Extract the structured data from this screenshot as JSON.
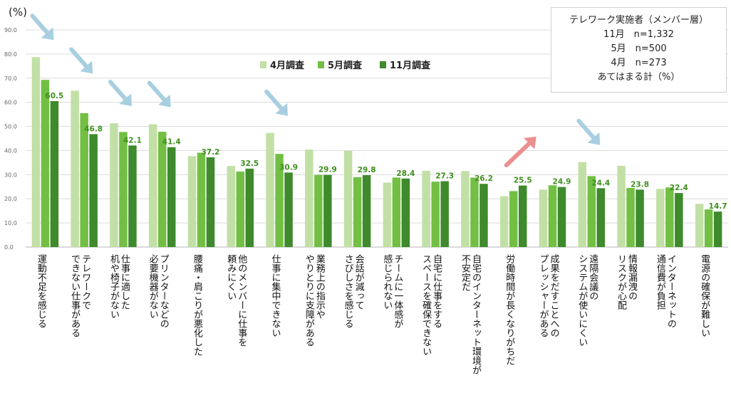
{
  "chart_data": {
    "type": "bar",
    "unit_label": "(%)",
    "ylim": [
      0,
      90
    ],
    "yticks": [
      "0.0",
      "10.0",
      "20.0",
      "30.0",
      "40.0",
      "50.0",
      "60.0",
      "70.0",
      "80.0",
      "90.0"
    ],
    "grid": true,
    "legend_position": "top-center",
    "categories": [
      "運動不足を感じる",
      "テレワークで\nできない仕事がある",
      "仕事に適した\n机や椅子がない",
      "プリンターなどの\n必要機器がない",
      "腰痛・肩こりが悪化した",
      "他のメンバーに仕事を\n頼みにくい",
      "仕事に集中できない",
      "業務上の指示や\nやりとりに支障がある",
      "会話が減って\nさびしさを感じる",
      "チームに一体感が\n感じられない",
      "自宅に仕事をする\nスペースを確保できない",
      "自宅のインターネット環境が\n不安定だ",
      "労働時間が長くなりがちだ",
      "成果をだすことへの\nプレッシャーがある",
      "遠隔会議の\nシステムが使いにくい",
      "情報漏洩の\nリスクが心配",
      "インターネットの\n通信費が負担",
      "電源の確保が難しい"
    ],
    "series": [
      {
        "name": "4月調査",
        "color": "#c2e0a6",
        "values": [
          78.7,
          64.8,
          51.3,
          50.9,
          37.7,
          33.6,
          47.3,
          40.4,
          39.9,
          26.7,
          31.6,
          31.5,
          21.1,
          23.8,
          35.2,
          33.7,
          24.1,
          17.9
        ]
      },
      {
        "name": "5月調査",
        "color": "#72bf44",
        "values": [
          69.3,
          55.5,
          47.7,
          47.8,
          39.1,
          31.3,
          38.6,
          29.9,
          29.0,
          28.8,
          27.1,
          28.8,
          23.2,
          25.6,
          29.4,
          24.5,
          24.7,
          15.6
        ]
      },
      {
        "name": "11月調査",
        "color": "#3e8a2c",
        "values": [
          60.5,
          46.8,
          42.1,
          41.4,
          37.2,
          32.5,
          30.9,
          29.9,
          29.8,
          28.4,
          27.3,
          26.2,
          25.5,
          24.9,
          24.4,
          23.8,
          22.4,
          14.7
        ]
      }
    ],
    "data_labels": [
      "60.5",
      "46.8",
      "42.1",
      "41.4",
      "37.2",
      "32.5",
      "30.9",
      "29.9",
      "29.8",
      "28.4",
      "27.3",
      "26.2",
      "25.5",
      "24.9",
      "24.4",
      "23.8",
      "22.4",
      "14.7"
    ],
    "annotations": {
      "down_arrow_categories": [
        0,
        1,
        2,
        3,
        6,
        14
      ],
      "up_arrow_categories": [
        12
      ],
      "down_arrow_color": "#a8cfe0",
      "up_arrow_color": "#ec8f8f"
    }
  },
  "info_box": {
    "lines": [
      "テレワーク実施者（メンバー層）",
      "11月　n=1,332",
      "5月　n=500",
      "4月　n=273",
      "あてはまる計（%）"
    ]
  }
}
